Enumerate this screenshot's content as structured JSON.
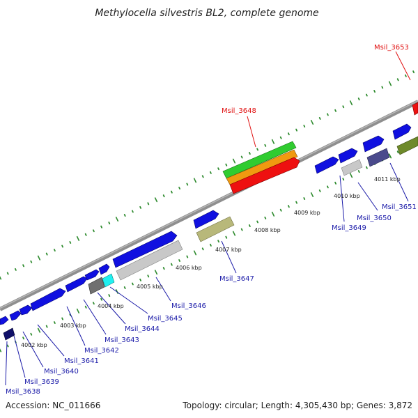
{
  "title": "Methylocella silvestris BL2, complete genome",
  "footer": {
    "accession": "Accession: NC_011666",
    "summary": "Topology: circular; Length: 4,305,430 bp; Genes: 3,872"
  },
  "colors": {
    "backbone": "#8f8f8f",
    "tick_marks": "#2e8b2e",
    "label_blue": "#1a1aa8",
    "label_red": "#e01010",
    "gene_blue": "#1010e0",
    "gene_navy": "#10106a",
    "gene_gray": "#c8c8c8",
    "gene_darkgray": "#707070",
    "gene_cyan": "#20f0f0",
    "gene_khaki": "#b8b87a",
    "gene_slate": "#4a4a8c",
    "gene_olive": "#6e8a2a",
    "gene_green": "#30cc30",
    "gene_orange": "#f09a10",
    "gene_red": "#ee1010"
  },
  "tick_labels": [
    "4002 kbp",
    "4003 kbp",
    "4004 kbp",
    "4005 kbp",
    "4006 kbp",
    "4007 kbp",
    "4008 kbp",
    "4009 kbp",
    "4010 kbp",
    "4011 kbp"
  ],
  "gene_labels": [
    {
      "text": "Msil_3638",
      "color": "blue"
    },
    {
      "text": "Msil_3639",
      "color": "blue"
    },
    {
      "text": "Msil_3640",
      "color": "blue"
    },
    {
      "text": "Msil_3641",
      "color": "blue"
    },
    {
      "text": "Msil_3642",
      "color": "blue"
    },
    {
      "text": "Msil_3643",
      "color": "blue"
    },
    {
      "text": "Msil_3644",
      "color": "blue"
    },
    {
      "text": "Msil_3645",
      "color": "blue"
    },
    {
      "text": "Msil_3646",
      "color": "blue"
    },
    {
      "text": "Msil_3647",
      "color": "blue"
    },
    {
      "text": "Msil_3648",
      "color": "red"
    },
    {
      "text": "Msil_3649",
      "color": "blue"
    },
    {
      "text": "Msil_3650",
      "color": "blue"
    },
    {
      "text": "Msil_3651",
      "color": "blue"
    },
    {
      "text": "Msil_3653",
      "color": "red"
    }
  ],
  "features": [
    {
      "color": "blue",
      "strand": "forward",
      "arrow": "right"
    },
    {
      "color": "blue",
      "strand": "forward",
      "arrow": "right"
    },
    {
      "color": "blue",
      "strand": "forward",
      "arrow": "right"
    },
    {
      "color": "blue",
      "strand": "forward",
      "arrow": "right"
    },
    {
      "color": "blue",
      "strand": "forward",
      "arrow": "right"
    },
    {
      "color": "blue",
      "strand": "forward",
      "arrow": "right"
    },
    {
      "color": "blue",
      "strand": "forward",
      "arrow": "right"
    },
    {
      "color": "blue",
      "strand": "forward",
      "arrow": "right"
    },
    {
      "color": "blue",
      "strand": "forward",
      "arrow": "right"
    },
    {
      "color": "blue",
      "strand": "forward",
      "arrow": "right"
    },
    {
      "color": "blue",
      "strand": "forward",
      "arrow": "right"
    },
    {
      "color": "blue",
      "strand": "forward",
      "arrow": "right"
    },
    {
      "color": "red",
      "strand": "forward",
      "arrow": "none"
    },
    {
      "color": "navy",
      "strand": "reverse",
      "arrow": "none"
    },
    {
      "color": "darkgray",
      "strand": "reverse",
      "arrow": "none"
    },
    {
      "color": "cyan",
      "strand": "reverse",
      "arrow": "none"
    },
    {
      "color": "gray",
      "strand": "reverse",
      "arrow": "none"
    },
    {
      "color": "khaki",
      "strand": "reverse",
      "arrow": "none"
    },
    {
      "color": "green",
      "strand": "reverse",
      "arrow": "none"
    },
    {
      "color": "orange",
      "strand": "reverse",
      "arrow": "none"
    },
    {
      "color": "red",
      "strand": "reverse",
      "arrow": "right"
    },
    {
      "color": "gray",
      "strand": "reverse",
      "arrow": "none"
    },
    {
      "color": "slate",
      "strand": "reverse",
      "arrow": "none"
    },
    {
      "color": "olive",
      "strand": "reverse",
      "arrow": "none"
    }
  ]
}
